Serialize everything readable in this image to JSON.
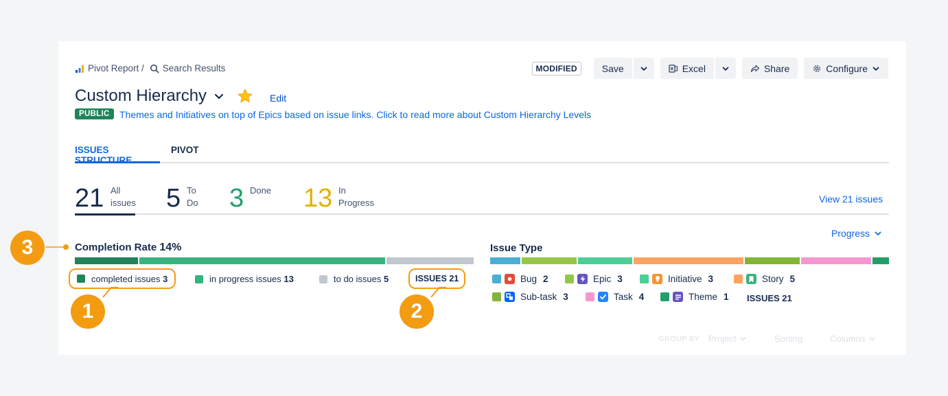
{
  "breadcrumb": {
    "report": "Pivot Report /",
    "search": "Search Results"
  },
  "toolbar": {
    "modified": "MODIFIED",
    "save": "Save",
    "excel": "Excel",
    "share": "Share",
    "configure": "Configure"
  },
  "header": {
    "title": "Custom Hierarchy",
    "edit": "Edit",
    "visibility": "PUBLIC",
    "description": "Themes and Initiatives on top of Epics based on issue links. Click to read more about Custom Hierarchy Levels"
  },
  "tabs": [
    {
      "label": "ISSUES STRUCTURE",
      "active": true
    },
    {
      "label": "PIVOT",
      "active": false
    }
  ],
  "stats": [
    {
      "value": "21",
      "label_line1": "All",
      "label_line2": "issues",
      "color": "#172b4d"
    },
    {
      "value": "5",
      "label_line1": "To",
      "label_line2": "Do",
      "color": "#172b4d"
    },
    {
      "value": "3",
      "label_line1": "Done",
      "label_line2": "",
      "color": "#22a06b"
    },
    {
      "value": "13",
      "label_line1": "In",
      "label_line2": "Progress",
      "color": "#e2b203"
    }
  ],
  "view_issues": "View 21 issues",
  "completion": {
    "title": "Completion Rate",
    "rate": "14%",
    "legend": [
      {
        "label": "completed issues",
        "count": "3",
        "color": "#1f845a"
      },
      {
        "label": "in progress issues",
        "count": "13",
        "color": "#36b37e"
      },
      {
        "label": "to do issues",
        "count": "5",
        "color": "#c1c7d0"
      }
    ],
    "issues_total": "ISSUES 21"
  },
  "progress_dropdown": "Progress",
  "issue_type": {
    "title": "Issue Type",
    "items": [
      {
        "name": "Bug",
        "count": "2",
        "color": "#4bafd4",
        "icon": "bug-icon",
        "icon_color": "#e5493a"
      },
      {
        "name": "Epic",
        "count": "3",
        "color": "#94c748",
        "icon": "epic-lightning-icon",
        "icon_color": "#6554c0"
      },
      {
        "name": "Initiative",
        "count": "3",
        "color": "#4bce97",
        "icon": "initiative-lightbulb-icon",
        "icon_color": "#f79232"
      },
      {
        "name": "Story",
        "count": "5",
        "color": "#fea362",
        "icon": "story-bookmark-icon",
        "icon_color": "#36b37e"
      },
      {
        "name": "Sub-task",
        "count": "3",
        "color": "#82b536",
        "icon": "subtask-icon",
        "icon_color": "#0065ff"
      },
      {
        "name": "Task",
        "count": "4",
        "color": "#f797d2",
        "icon": "task-check-icon",
        "icon_color": "#2684ff"
      },
      {
        "name": "Theme",
        "count": "1",
        "color": "#22a06b",
        "icon": "theme-list-icon",
        "icon_color": "#6554c0"
      }
    ],
    "issues_total": "ISSUES 21"
  },
  "footer": {
    "group_by": "GROUP BY",
    "project": "Project",
    "sorting": "Sorting",
    "columns": "Columns"
  },
  "annotations": {
    "one": "1",
    "two": "2",
    "three": "3"
  }
}
